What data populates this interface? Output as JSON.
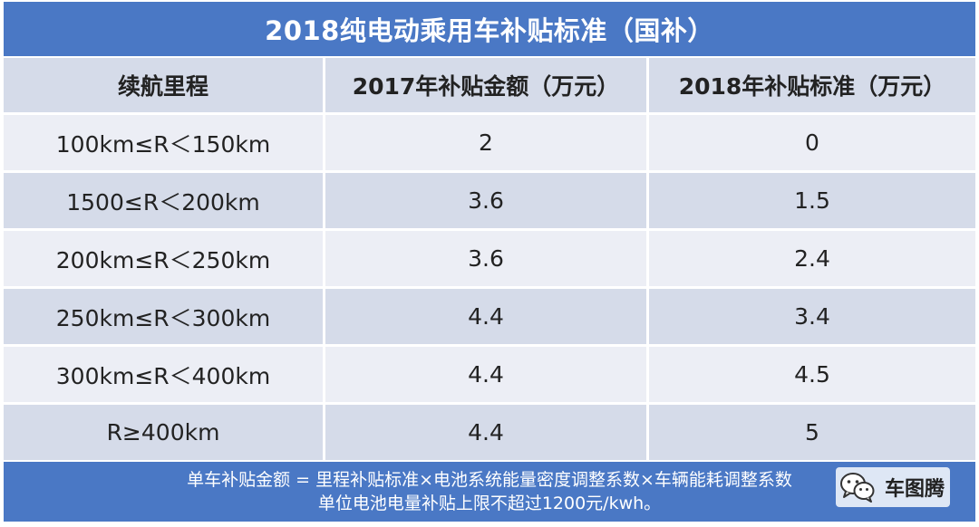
{
  "table": {
    "title": "2018纯电动乘用车补贴标准（国补）",
    "headers": [
      "续航里程",
      "2017年补贴金额（万元）",
      "2018年补贴标准（万元）"
    ],
    "rows": [
      [
        "100km≤R＜150km",
        "2",
        "0"
      ],
      [
        "1500≤R＜200km",
        "3.6",
        "1.5"
      ],
      [
        "200km≤R＜250km",
        "3.6",
        "2.4"
      ],
      [
        "250km≤R＜300km",
        "4.4",
        "3.4"
      ],
      [
        "300km≤R＜400km",
        "4.4",
        "4.5"
      ],
      [
        "R≥400km",
        "4.4",
        "5"
      ]
    ]
  },
  "footer": {
    "line1": "单车补贴金额 = 里程补贴标准×电池系统能量密度调整系数×车辆能耗调整系数",
    "line2": "单位电池电量补贴上限不超过1200元/kwh。"
  },
  "watermark": {
    "name": "车图腾",
    "icon": "wechat-icon"
  },
  "colors": {
    "accent_blue": "#4a78c5",
    "row_dark": "#d5dbe9",
    "row_light": "#eceef5"
  }
}
